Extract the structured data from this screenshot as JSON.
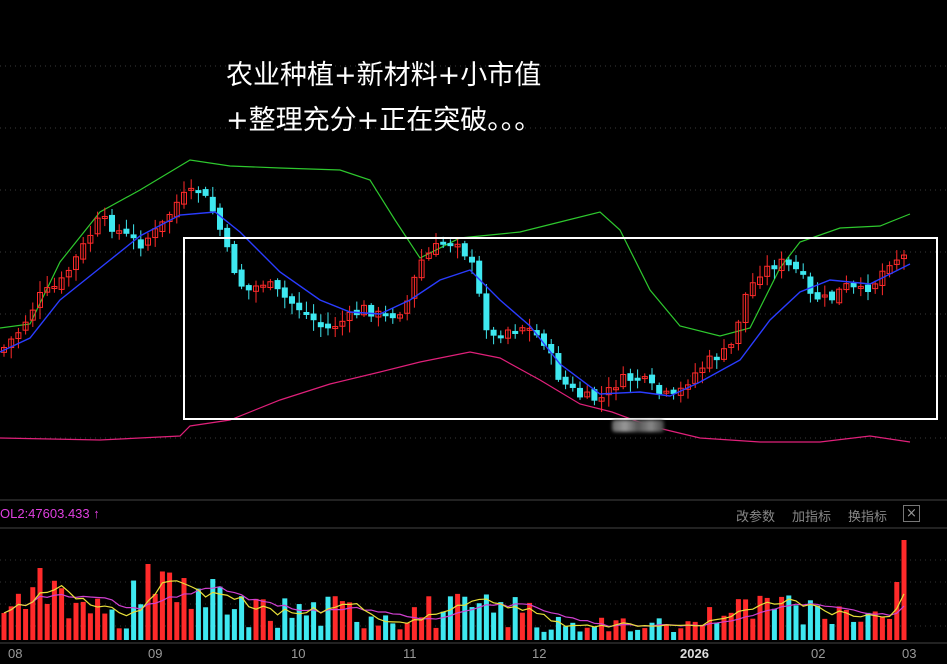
{
  "annotation": {
    "line1": "农业种植+新材料+小市值",
    "line2": "+整理充分+正在突破。。。"
  },
  "volume_panel": {
    "label": "OL2:47603.433 ↑",
    "buttons": {
      "params": "改参数",
      "add_indicator": "加指标",
      "swap_indicator": "换指标",
      "close": "×"
    }
  },
  "colors": {
    "up": "#ff2a2a",
    "down": "#3ee8f0",
    "ma_blue": "#2a3cff",
    "band_green": "#2ec82e",
    "band_pink": "#e0207a",
    "vol_ma_yellow": "#e8e03a",
    "vol_ma_magenta": "#d040d0",
    "box": "#ffffff"
  },
  "chart_data": {
    "type": "candlestick",
    "x_tick_labels": [
      "08",
      "09",
      "10",
      "11",
      "12",
      "2026",
      "02",
      "03"
    ],
    "highlight_box": "consolidation range from late 09 to 03",
    "series": [
      "price",
      "blue moving average",
      "upper band (green)",
      "lower band (pink)",
      "volume"
    ]
  }
}
